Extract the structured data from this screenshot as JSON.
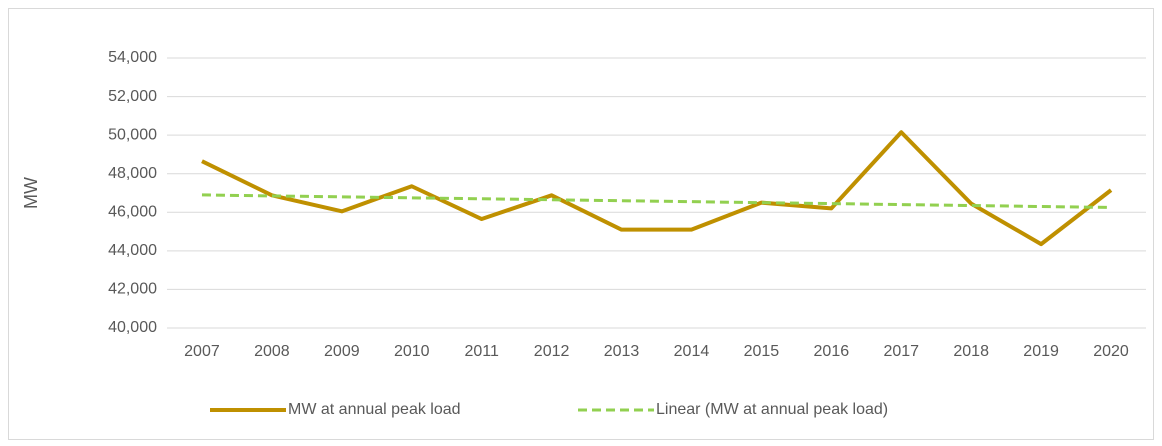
{
  "chart_data": {
    "type": "line",
    "y_label": "MW",
    "categories": [
      "2007",
      "2008",
      "2009",
      "2010",
      "2011",
      "2012",
      "2013",
      "2014",
      "2015",
      "2016",
      "2017",
      "2018",
      "2019",
      "2020"
    ],
    "series": [
      {
        "name": "MW at annual peak load",
        "color": "#bf9000",
        "dash": false,
        "values": [
          48650,
          46880,
          46050,
          47350,
          45650,
          46880,
          45100,
          45100,
          46500,
          46200,
          50150,
          46450,
          44350,
          47150
        ]
      },
      {
        "name": "Linear (MW at annual peak load)",
        "color": "#92d050",
        "dash": true,
        "values": [
          46900,
          46850,
          46800,
          46750,
          46700,
          46650,
          46600,
          46550,
          46500,
          46450,
          46400,
          46350,
          46300,
          46250
        ]
      }
    ],
    "ylim": [
      40000,
      54000
    ],
    "yticks": [
      {
        "value": 40000,
        "label": "40,000"
      },
      {
        "value": 42000,
        "label": "42,000"
      },
      {
        "value": 44000,
        "label": "44,000"
      },
      {
        "value": 46000,
        "label": "46,000"
      },
      {
        "value": 48000,
        "label": "48,000"
      },
      {
        "value": 50000,
        "label": "50,000"
      },
      {
        "value": 52000,
        "label": "52,000"
      },
      {
        "value": 54000,
        "label": "54,000"
      }
    ],
    "grid": true,
    "legend": "bottom"
  }
}
